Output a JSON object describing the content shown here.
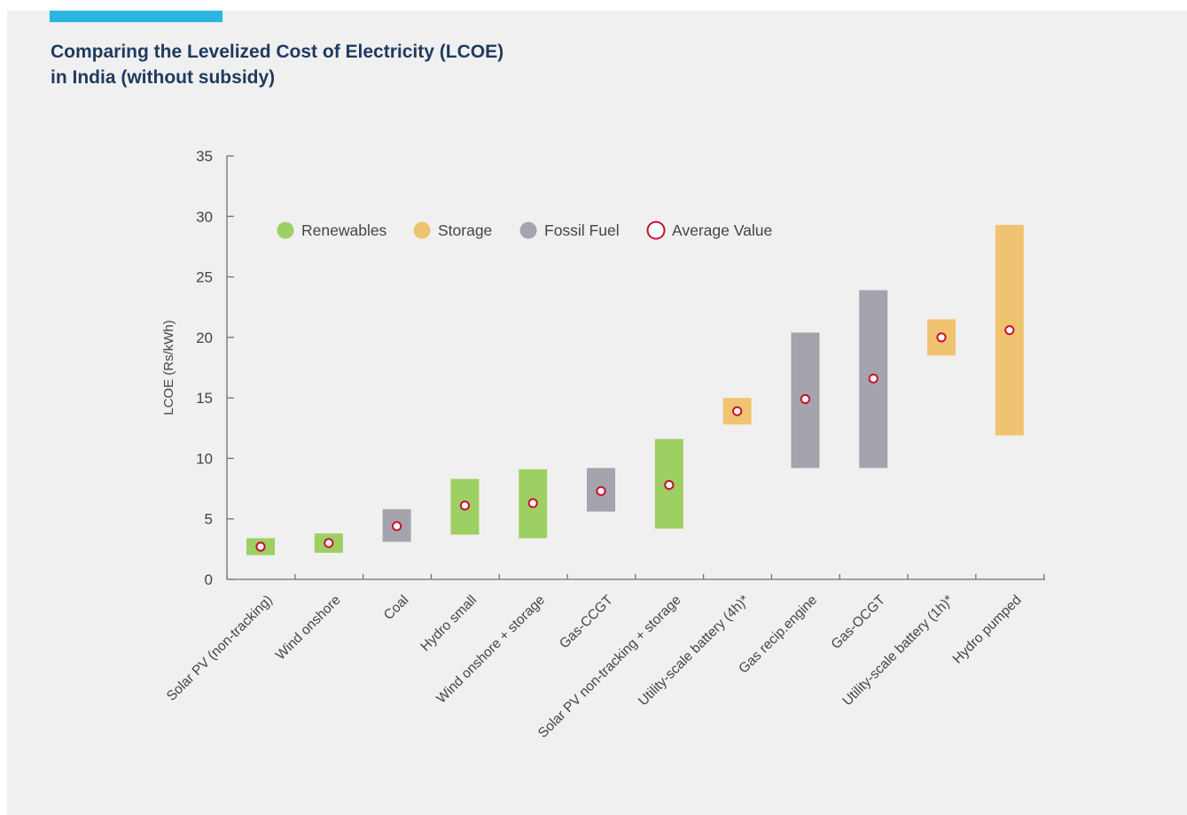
{
  "title": {
    "line1": "Comparing the Levelized Cost of Electricity (LCOE)",
    "line2": "in India (without subsidy)"
  },
  "colors": {
    "accent": "#29b6e0",
    "title": "#1f3a5f",
    "Renewables": "#9ecf62",
    "Storage": "#f0c370",
    "Fossil Fuel": "#a5a3ad",
    "average_marker": "#c8102e"
  },
  "chart_data": {
    "type": "range-bar",
    "title": "Comparing the Levelized Cost of Electricity (LCOE) in India (without subsidy)",
    "xlabel": "",
    "ylabel": "LCOE (Rs/kWh)",
    "ylim": [
      0,
      35
    ],
    "yticks": [
      0,
      5,
      10,
      15,
      20,
      25,
      30,
      35
    ],
    "grid": false,
    "legend_position": "top-left",
    "legend": [
      "Renewables",
      "Storage",
      "Fossil Fuel",
      "Average Value"
    ],
    "categories": [
      "Solar PV (non-tracking)",
      "Wind onshore",
      "Coal",
      "Hydro small",
      "Wind onshore + storage",
      "Gas-CCGT",
      "Solar PV non-tracking + storage",
      "Utility-scale battery (4h)*",
      "Gas recip.engine",
      "Gas-OCGT",
      "Utility-scale battery (1h)*",
      "Hydro pumped"
    ],
    "groups": [
      "Renewables",
      "Renewables",
      "Fossil Fuel",
      "Renewables",
      "Renewables",
      "Fossil Fuel",
      "Renewables",
      "Storage",
      "Fossil Fuel",
      "Fossil Fuel",
      "Storage",
      "Storage"
    ],
    "low": [
      2.0,
      2.2,
      3.1,
      3.7,
      3.4,
      5.6,
      4.2,
      12.8,
      9.2,
      9.2,
      18.5,
      11.9
    ],
    "high": [
      3.4,
      3.8,
      5.8,
      8.3,
      9.1,
      9.2,
      11.6,
      15.0,
      20.4,
      23.9,
      21.5,
      29.3
    ],
    "average": [
      2.7,
      3.0,
      4.4,
      6.1,
      6.3,
      7.3,
      7.8,
      13.9,
      14.9,
      16.6,
      20.0,
      20.6
    ]
  }
}
